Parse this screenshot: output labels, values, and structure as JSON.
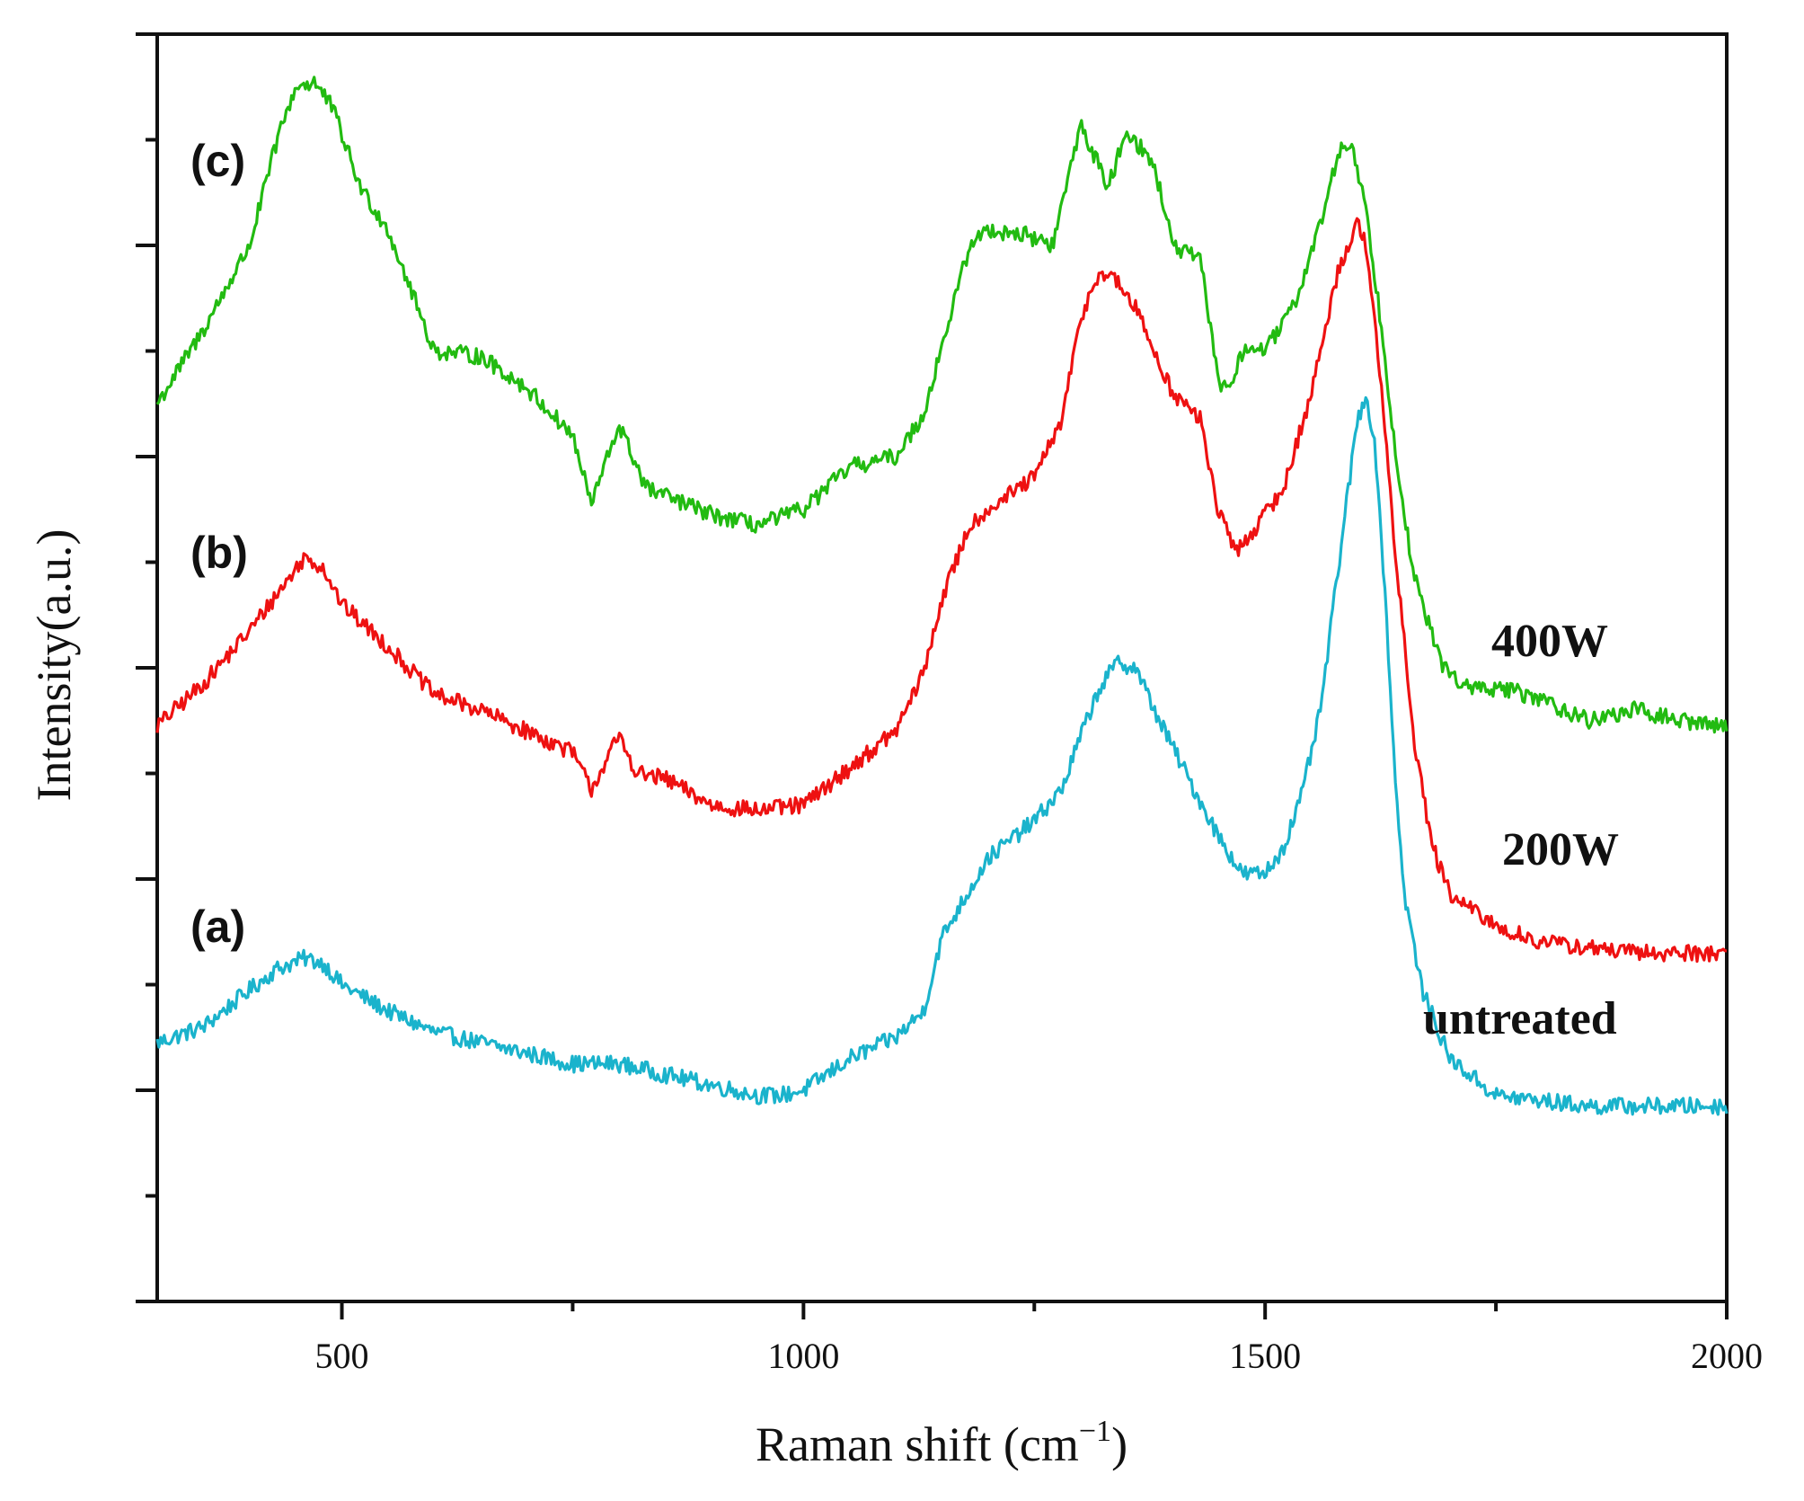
{
  "chart_data": {
    "type": "line",
    "title": "",
    "xlabel": "Raman shift (cm",
    "xlabel_sup": "−1",
    "xlabel_close": ")",
    "ylabel": "Intensity(a.u.)",
    "xlim": [
      300,
      2000
    ],
    "ylim": [
      0,
      12
    ],
    "xticks": [
      500,
      1000,
      1500,
      2000
    ],
    "xtick_labels": [
      "500",
      "1000",
      "1500",
      "2000"
    ],
    "y_major_ticks": [
      0,
      2,
      4,
      6,
      8,
      10,
      12
    ],
    "y_minor_ticks": [
      1,
      3,
      5,
      7,
      9,
      11
    ],
    "x_minor_ticks": [
      750,
      1250,
      1750
    ],
    "grid": false,
    "series": [
      {
        "name": "untreated",
        "label": "untreated",
        "panel": "(a)",
        "color": "#1ab3cc",
        "x": [
          300,
          350,
          400,
          430,
          460,
          480,
          500,
          550,
          600,
          650,
          700,
          750,
          800,
          850,
          900,
          950,
          975,
          1000,
          1050,
          1100,
          1130,
          1150,
          1200,
          1250,
          1280,
          1300,
          1320,
          1340,
          1360,
          1380,
          1400,
          1420,
          1450,
          1475,
          1500,
          1520,
          1540,
          1560,
          1580,
          1600,
          1610,
          1620,
          1630,
          1640,
          1650,
          1670,
          1700,
          1750,
          1800,
          1850,
          1900,
          1950,
          2000
        ],
        "values": [
          2.45,
          2.6,
          2.95,
          3.15,
          3.25,
          3.2,
          3.0,
          2.75,
          2.55,
          2.45,
          2.35,
          2.25,
          2.25,
          2.15,
          2.05,
          1.95,
          1.95,
          2.0,
          2.3,
          2.5,
          2.75,
          3.45,
          4.2,
          4.55,
          4.85,
          5.35,
          5.8,
          6.05,
          6.0,
          5.6,
          5.25,
          4.9,
          4.4,
          4.05,
          4.05,
          4.3,
          4.8,
          5.6,
          7.0,
          8.35,
          8.6,
          8.0,
          6.7,
          5.1,
          3.9,
          2.95,
          2.3,
          1.95,
          1.9,
          1.85,
          1.85,
          1.85,
          1.85
        ]
      },
      {
        "name": "200W",
        "label": "200W",
        "panel": "(b)",
        "color": "#ee1111",
        "x": [
          300,
          350,
          400,
          430,
          460,
          480,
          500,
          550,
          600,
          650,
          700,
          750,
          770,
          800,
          820,
          850,
          900,
          950,
          1000,
          1050,
          1100,
          1130,
          1150,
          1180,
          1200,
          1250,
          1280,
          1300,
          1320,
          1340,
          1360,
          1400,
          1430,
          1450,
          1470,
          1500,
          1520,
          1550,
          1580,
          1600,
          1610,
          1620,
          1640,
          1660,
          1680,
          1700,
          1750,
          1800,
          1850,
          1900,
          1950,
          2000
        ],
        "values": [
          5.45,
          5.85,
          6.35,
          6.7,
          7.05,
          6.95,
          6.6,
          6.2,
          5.75,
          5.6,
          5.4,
          5.2,
          4.85,
          5.35,
          5.0,
          4.95,
          4.7,
          4.65,
          4.7,
          5.05,
          5.4,
          5.95,
          6.65,
          7.35,
          7.5,
          7.8,
          8.35,
          9.3,
          9.75,
          9.65,
          9.4,
          8.6,
          8.35,
          7.45,
          7.1,
          7.45,
          7.7,
          8.6,
          9.8,
          10.2,
          10.0,
          9.2,
          7.2,
          5.4,
          4.35,
          3.85,
          3.55,
          3.4,
          3.35,
          3.3,
          3.3,
          3.3
        ]
      },
      {
        "name": "400W",
        "label": "400W",
        "panel": "(c)",
        "color": "#22bb11",
        "x": [
          300,
          350,
          400,
          430,
          450,
          470,
          490,
          520,
          550,
          600,
          650,
          700,
          750,
          770,
          800,
          830,
          900,
          950,
          1000,
          1050,
          1100,
          1130,
          1150,
          1180,
          1200,
          1240,
          1270,
          1300,
          1310,
          1330,
          1350,
          1380,
          1400,
          1430,
          1450,
          1460,
          1480,
          1500,
          1530,
          1560,
          1580,
          1595,
          1610,
          1625,
          1640,
          1660,
          1690,
          1720,
          1760,
          1800,
          1850,
          1900,
          1950,
          2000
        ],
        "values": [
          8.5,
          9.2,
          10.0,
          11.0,
          11.5,
          11.55,
          11.3,
          10.55,
          10.15,
          9.0,
          8.95,
          8.65,
          8.2,
          7.55,
          8.3,
          7.7,
          7.45,
          7.35,
          7.5,
          7.9,
          8.0,
          8.4,
          9.05,
          10.0,
          10.15,
          10.1,
          10.0,
          11.15,
          10.95,
          10.55,
          11.1,
          10.75,
          10.0,
          9.85,
          8.7,
          8.65,
          9.05,
          9.0,
          9.4,
          10.2,
          10.9,
          10.95,
          10.3,
          9.3,
          8.15,
          6.9,
          6.05,
          5.8,
          5.8,
          5.7,
          5.5,
          5.6,
          5.5,
          5.45
        ]
      }
    ]
  }
}
